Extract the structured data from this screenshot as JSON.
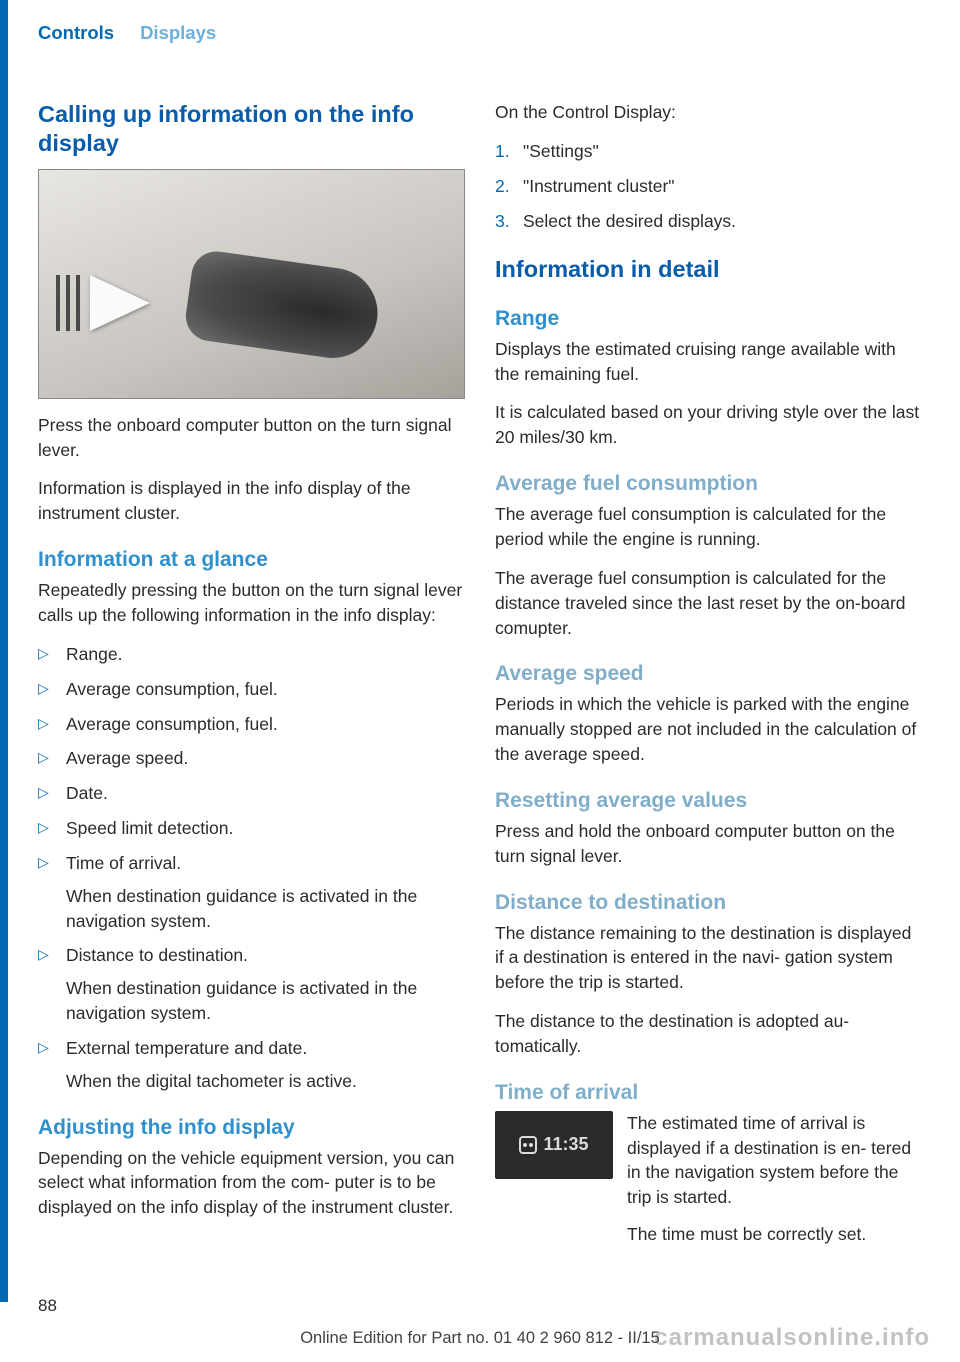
{
  "colors": {
    "bar": "#0469b3",
    "header_active": "#0469b3",
    "header_inactive": "#6db1de",
    "h_dark": "#085ca9",
    "h_med": "#2f90ce",
    "h_gray": "#80aeca",
    "body": "#2b2b2b"
  },
  "header": {
    "controls": "Controls",
    "displays": "Displays"
  },
  "left": {
    "h1": "Calling up information on the info display",
    "p1": "Press the onboard computer button on the turn signal lever.",
    "p2": "Information is displayed in the info display of the instrument cluster.",
    "h2": "Information at a glance",
    "p3": "Repeatedly pressing the button on the turn signal lever calls up the following information in the info display:",
    "bullets": [
      {
        "text": "Range."
      },
      {
        "text": "Average consumption, fuel."
      },
      {
        "text": "Average consumption, fuel."
      },
      {
        "text": "Average speed."
      },
      {
        "text": "Date."
      },
      {
        "text": "Speed limit detection."
      },
      {
        "text": "Time of arrival.",
        "sub": "When destination guidance is activated in the navigation system."
      },
      {
        "text": "Distance to destination.",
        "sub": "When destination guidance is activated in the navigation system."
      },
      {
        "text": "External temperature and date.",
        "sub": "When the digital tachometer is active."
      }
    ],
    "h3": "Adjusting the info display",
    "p4": "Depending on the vehicle equipment version, you can select what information from the com‐ puter is to be displayed on the info display of the instrument cluster."
  },
  "right": {
    "p1": "On the Control Display:",
    "steps": [
      "\"Settings\"",
      "\"Instrument cluster\"",
      "Select the desired displays."
    ],
    "h1": "Information in detail",
    "range_h": "Range",
    "range_p1": "Displays the estimated cruising range available with the remaining fuel.",
    "range_p2": "It is calculated based on your driving style over the last 20 miles/30 km.",
    "afc_h": "Average fuel consumption",
    "afc_p1": "The average fuel consumption is calculated for the period while the engine is running.",
    "afc_p2": "The average fuel consumption is calculated for the distance traveled since the last reset by the on-board comupter.",
    "as_h": "Average speed",
    "as_p1": "Periods in which the vehicle is parked with the engine manually stopped are not included in the calculation of the average speed.",
    "rav_h": "Resetting average values",
    "rav_p1": "Press and hold the onboard computer button on the turn signal lever.",
    "dtd_h": "Distance to destination",
    "dtd_p1": "The distance remaining to the destination is displayed if a destination is entered in the navi‐ gation system before the trip is started.",
    "dtd_p2": "The distance to the destination is adopted au‐ tomatically.",
    "toa_h": "Time of arrival",
    "toa_time": "11:35",
    "toa_p1": "The estimated time of arrival is displayed if a destination is en‐ tered in the navigation system before the trip is started.",
    "toa_p2": "The time must be correctly set."
  },
  "page_number": "88",
  "footer": "Online Edition for Part no. 01 40 2 960 812 - II/15",
  "watermark": "carmanualsonline.info"
}
